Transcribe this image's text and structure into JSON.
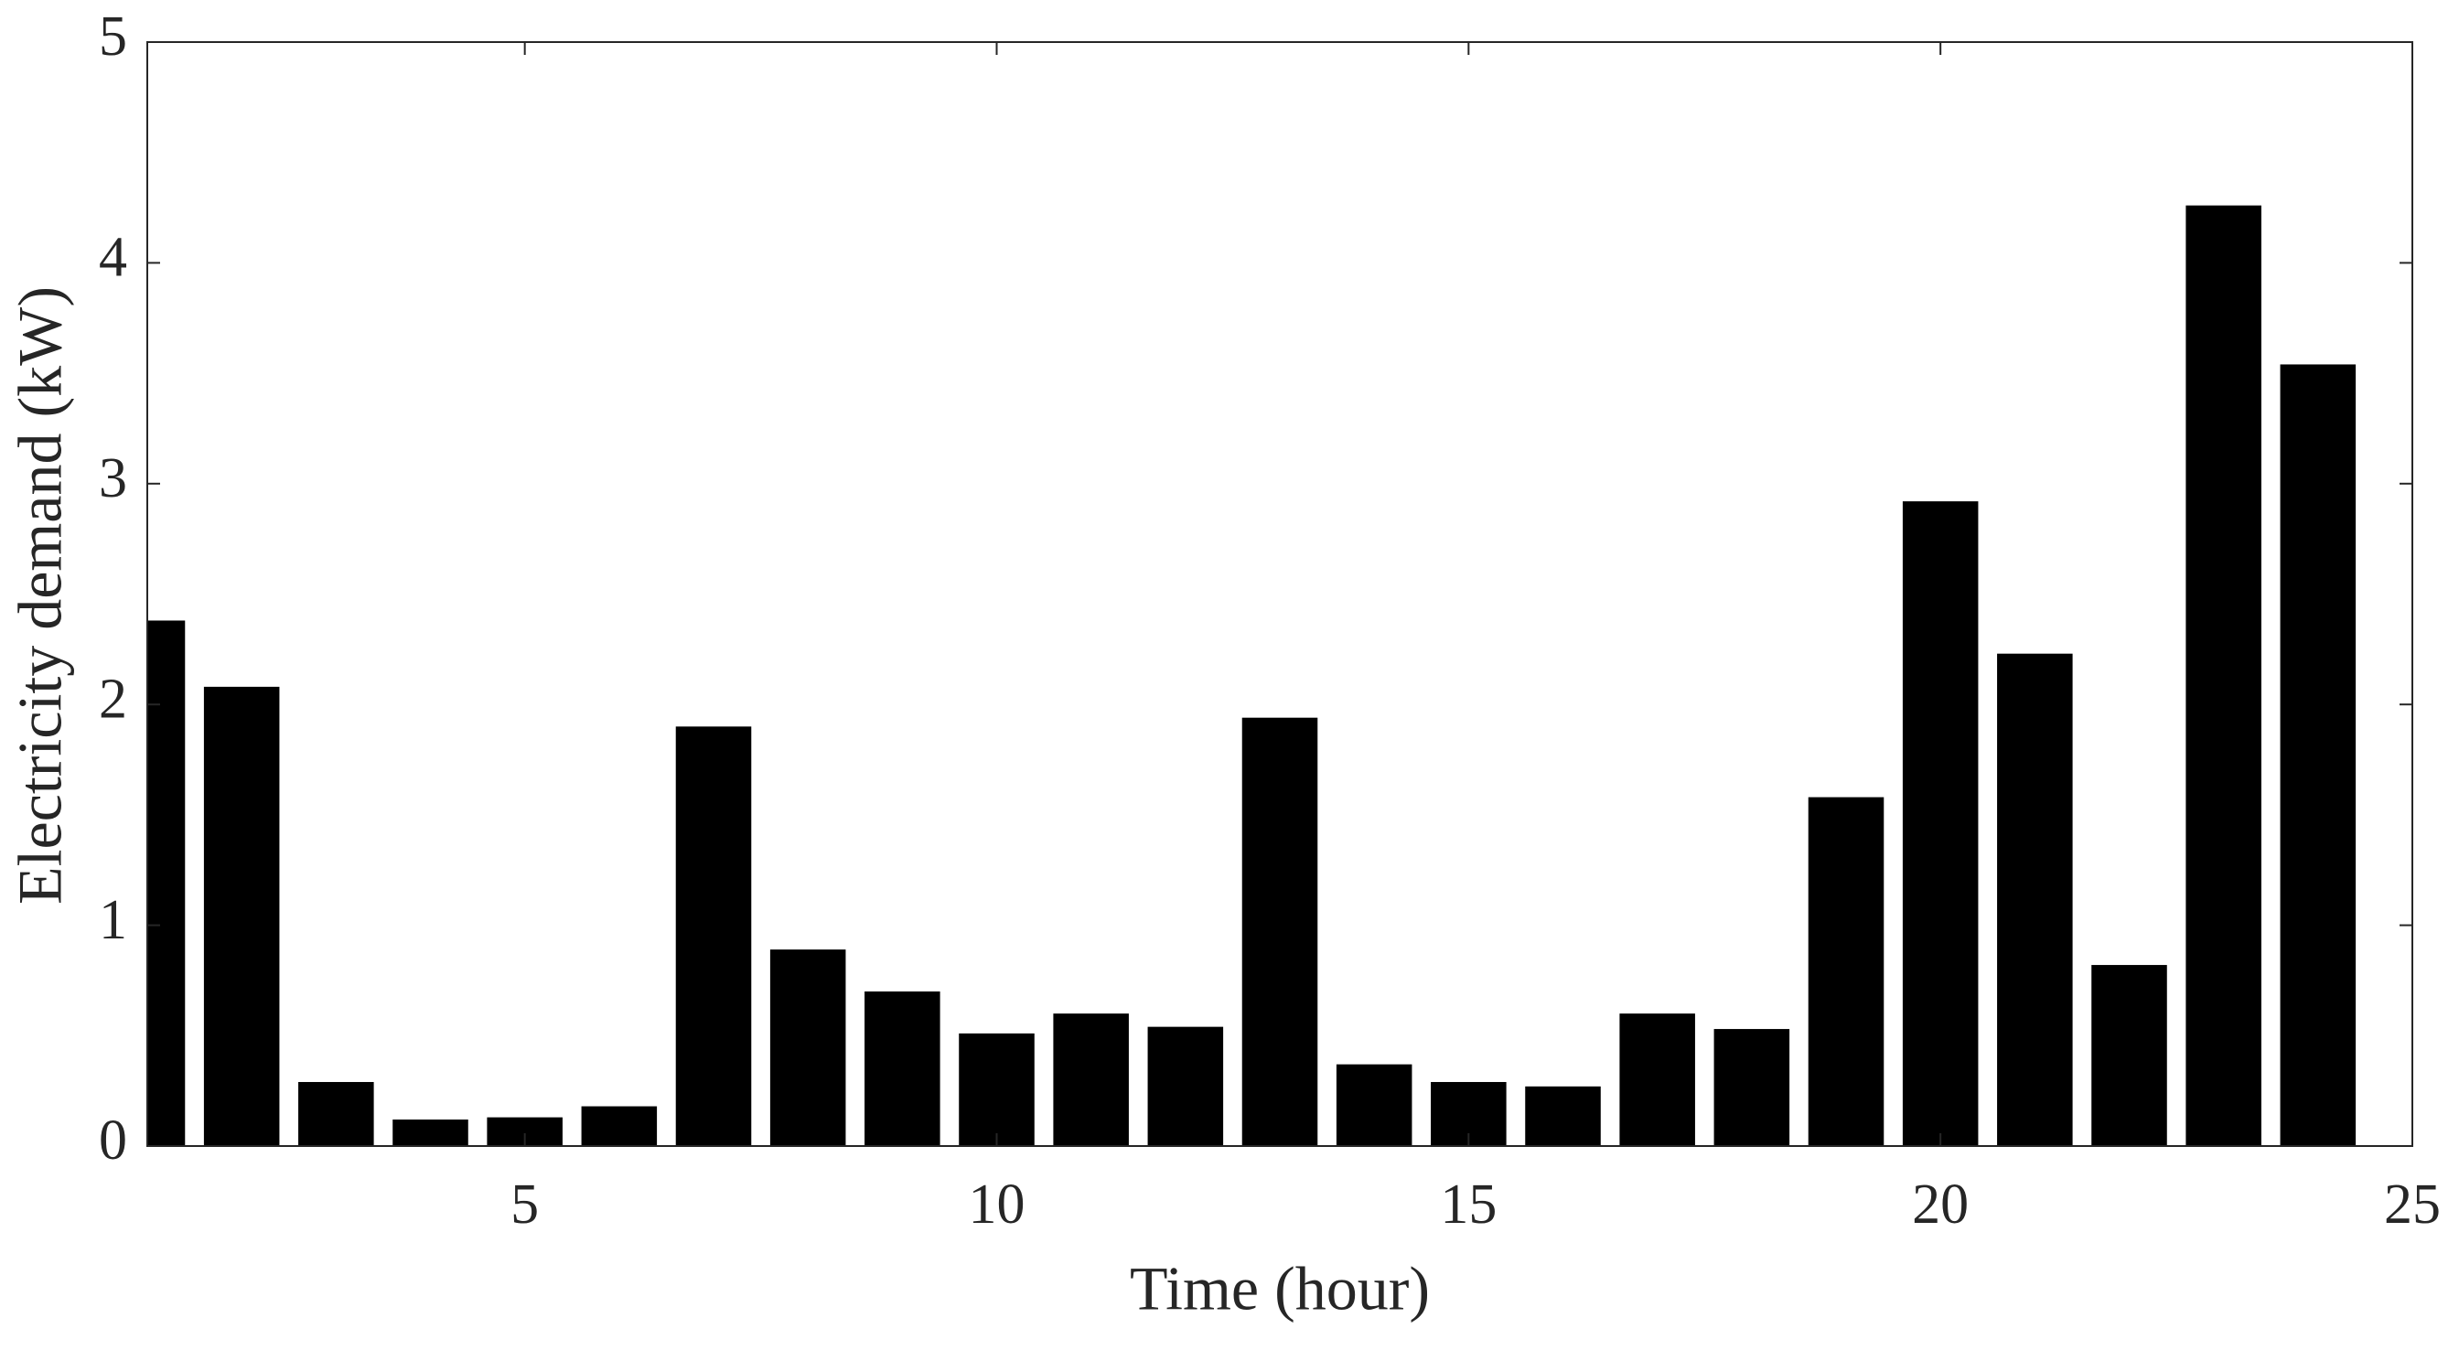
{
  "chart_data": {
    "type": "bar",
    "x_label": "Time (hour)",
    "y_label": "Electricity demand (kW)",
    "x": [
      1,
      2,
      3,
      4,
      5,
      6,
      7,
      8,
      9,
      10,
      11,
      12,
      13,
      14,
      15,
      16,
      17,
      18,
      19,
      20,
      21,
      22,
      23,
      24
    ],
    "values": [
      2.38,
      2.08,
      0.29,
      0.12,
      0.13,
      0.18,
      1.9,
      0.89,
      0.7,
      0.51,
      0.6,
      0.54,
      1.94,
      0.37,
      0.29,
      0.27,
      0.6,
      0.53,
      1.58,
      2.92,
      2.23,
      0.82,
      4.26,
      3.54
    ],
    "color": "#000000",
    "xlim": [
      1,
      25
    ],
    "xticks": [
      5,
      10,
      15,
      20,
      25
    ],
    "ylim": [
      0,
      5
    ],
    "yticks": [
      0,
      1,
      2,
      3,
      4,
      5
    ],
    "grid": false
  }
}
